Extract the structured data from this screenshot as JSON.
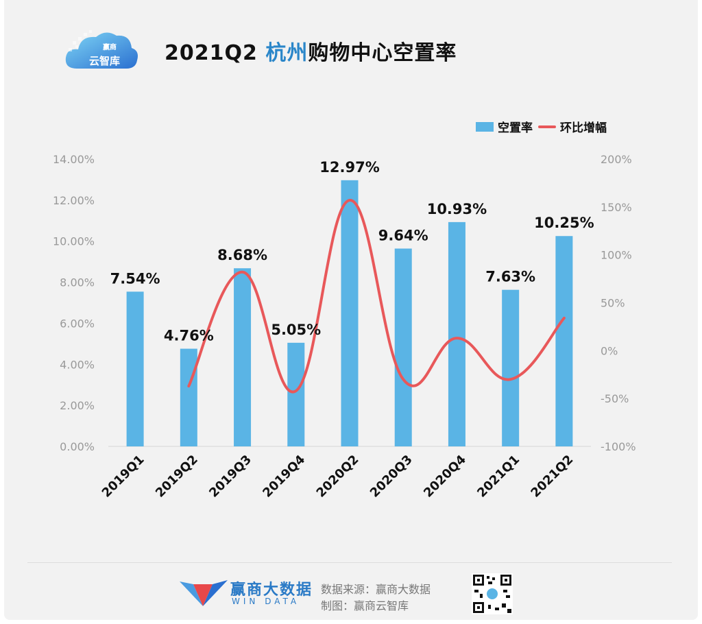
{
  "header": {
    "title_prefix": "2021Q2 ",
    "title_highlight": "杭州",
    "title_suffix": "购物中心空置率",
    "logo_text": "云智库",
    "logo_text_small": "赢商"
  },
  "legend": {
    "bar_label": "空置率",
    "line_label": "环比增幅"
  },
  "footer": {
    "brand_name": "赢商大数据",
    "brand_en": "WIN DATA",
    "source": "数据来源：赢商大数据",
    "made_by": "制图：赢商云智库"
  },
  "colors": {
    "bar": "#5ab4e5",
    "line": "#e8585a",
    "highlight": "#2a86c9"
  },
  "chart_data": {
    "type": "bar",
    "categories": [
      "2019Q1",
      "2019Q2",
      "2019Q3",
      "2019Q4",
      "2020Q2",
      "2020Q3",
      "2020Q4",
      "2021Q1",
      "2021Q2"
    ],
    "series": [
      {
        "name": "空置率",
        "type": "bar",
        "axis": "left",
        "values": [
          7.54,
          4.76,
          8.68,
          5.05,
          12.97,
          9.64,
          10.93,
          7.63,
          10.25
        ],
        "labels": [
          "7.54%",
          "4.76%",
          "8.68%",
          "5.05%",
          "12.97%",
          "9.64%",
          "10.93%",
          "7.63%",
          "10.25%"
        ]
      },
      {
        "name": "环比增幅",
        "type": "line",
        "axis": "right",
        "values": [
          null,
          -37,
          82,
          -42,
          157,
          -30,
          13,
          -30,
          34
        ]
      }
    ],
    "y_left": {
      "min": 0,
      "max": 14,
      "ticks": [
        "0.00%",
        "2.00%",
        "4.00%",
        "6.00%",
        "8.00%",
        "10.00%",
        "12.00%",
        "14.00%"
      ]
    },
    "y_right": {
      "min": -100,
      "max": 200,
      "ticks": [
        "-100%",
        "-50%",
        "0%",
        "50%",
        "100%",
        "150%",
        "200%"
      ]
    },
    "grid": false,
    "legend_position": "top-right"
  }
}
